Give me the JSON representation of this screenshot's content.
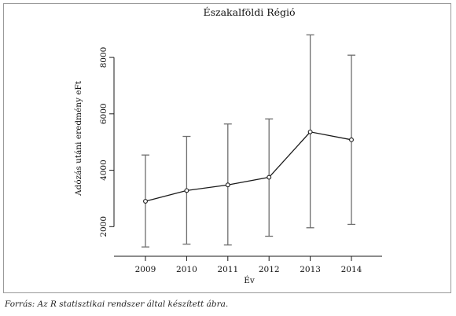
{
  "chart_data": {
    "type": "line",
    "title": "Északalföldi Régió",
    "xlabel": "Év",
    "ylabel": "Adózás utáni eredmény eFt",
    "x": [
      "2009",
      "2010",
      "2011",
      "2012",
      "2013",
      "2014"
    ],
    "series": [
      {
        "values": [
          2900,
          3280,
          3480,
          3750,
          5360,
          5080
        ],
        "error_low": [
          1280,
          1380,
          1350,
          1660,
          1960,
          2080
        ],
        "error_high": [
          4540,
          5200,
          5640,
          5820,
          8800,
          8080
        ]
      }
    ],
    "yticks": [
      2000,
      4000,
      6000,
      8000
    ],
    "ylim": [
      950,
      9200
    ],
    "grid": false,
    "legend": "none",
    "colors": {
      "line": "#1a1a1a",
      "errorbar": "#6e6e6e",
      "axis": "#1a1a1a"
    }
  },
  "caption": "Forrás: Az R statisztikai rendszer által készített ábra."
}
